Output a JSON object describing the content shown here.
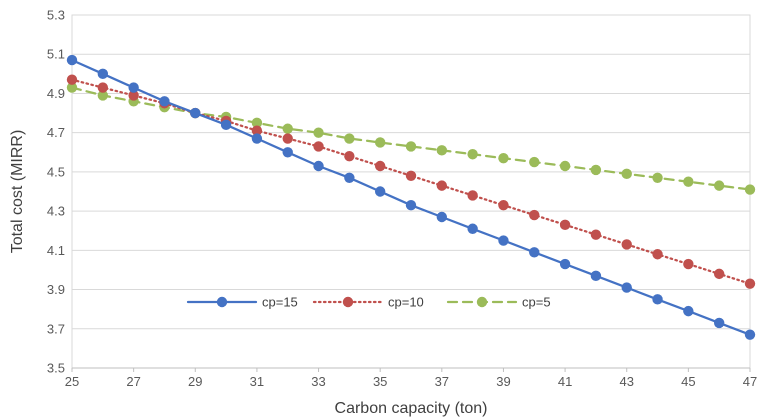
{
  "chart_data": {
    "type": "line",
    "xlabel": "Carbon capacity (ton)",
    "ylabel": "Total cost (MIRR)",
    "xlim": [
      25,
      47
    ],
    "ylim": [
      3.5,
      5.3
    ],
    "x_ticks": [
      "25",
      "27",
      "29",
      "31",
      "33",
      "35",
      "37",
      "39",
      "41",
      "43",
      "45",
      "47"
    ],
    "y_ticks": [
      "3.5",
      "3.7",
      "3.9",
      "4.1",
      "4.3",
      "4.5",
      "4.7",
      "4.9",
      "5.1",
      "5.3"
    ],
    "grid": "horizontal",
    "legend_position": "bottom-inside",
    "x": [
      25,
      26,
      27,
      28,
      29,
      30,
      31,
      32,
      33,
      34,
      35,
      36,
      37,
      38,
      39,
      40,
      41,
      42,
      43,
      44,
      45,
      46,
      47
    ],
    "series": [
      {
        "name": "cp=15",
        "color": "#4472c4",
        "line_style": "solid",
        "values": [
          5.07,
          5.0,
          4.93,
          4.86,
          4.8,
          4.74,
          4.67,
          4.6,
          4.53,
          4.47,
          4.4,
          4.33,
          4.27,
          4.21,
          4.15,
          4.09,
          4.03,
          3.97,
          3.91,
          3.85,
          3.79,
          3.73,
          3.67
        ]
      },
      {
        "name": "cp=10",
        "color": "#c0504d",
        "line_style": "dotted",
        "values": [
          4.97,
          4.93,
          4.89,
          4.85,
          4.8,
          4.76,
          4.71,
          4.67,
          4.63,
          4.58,
          4.53,
          4.48,
          4.43,
          4.38,
          4.33,
          4.28,
          4.23,
          4.18,
          4.13,
          4.08,
          4.03,
          3.98,
          3.93
        ]
      },
      {
        "name": "cp=5",
        "color": "#9bbb59",
        "line_style": "dashed",
        "values": [
          4.93,
          4.89,
          4.86,
          4.83,
          4.8,
          4.78,
          4.75,
          4.72,
          4.7,
          4.67,
          4.65,
          4.63,
          4.61,
          4.59,
          4.57,
          4.55,
          4.53,
          4.51,
          4.49,
          4.47,
          4.45,
          4.43,
          4.41
        ]
      }
    ]
  }
}
